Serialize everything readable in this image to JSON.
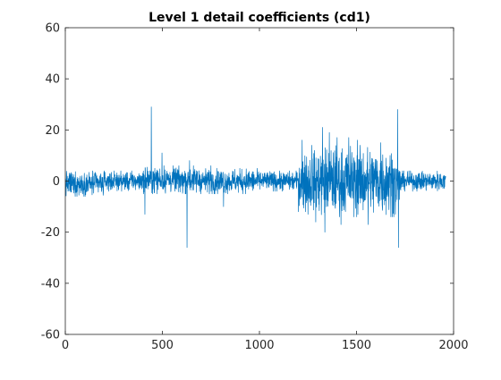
{
  "chart_data": {
    "type": "line",
    "title": "Level 1 detail coefficients (cd1)",
    "xlabel": "",
    "ylabel": "",
    "xlim": [
      0,
      2000
    ],
    "ylim": [
      -60,
      60
    ],
    "xticks": [
      0,
      500,
      1000,
      1500,
      2000
    ],
    "yticks": [
      -60,
      -40,
      -20,
      0,
      20,
      40,
      60
    ],
    "xtick_labels": [
      "0",
      "500",
      "1000",
      "1500",
      "2000"
    ],
    "ytick_labels": [
      "-60",
      "-40",
      "-20",
      "0",
      "20",
      "40",
      "60"
    ],
    "grid": false,
    "legend": "none",
    "n_points": 1960,
    "series": [
      {
        "color": "#0072BD",
        "envelope_segments": [
          {
            "x_start": 0,
            "x_end": 200,
            "ymin": -6,
            "ymax": 4
          },
          {
            "x_start": 200,
            "x_end": 400,
            "ymin": -4,
            "ymax": 4
          },
          {
            "x_start": 400,
            "x_end": 700,
            "ymin": -5,
            "ymax": 6
          },
          {
            "x_start": 700,
            "x_end": 1000,
            "ymin": -5,
            "ymax": 5
          },
          {
            "x_start": 1000,
            "x_end": 1200,
            "ymin": -4,
            "ymax": 4
          },
          {
            "x_start": 1200,
            "x_end": 1300,
            "ymin": -12,
            "ymax": 12
          },
          {
            "x_start": 1300,
            "x_end": 1500,
            "ymin": -14,
            "ymax": 14
          },
          {
            "x_start": 1500,
            "x_end": 1700,
            "ymin": -14,
            "ymax": 14
          },
          {
            "x_start": 1700,
            "x_end": 1730,
            "ymin": -10,
            "ymax": 8
          },
          {
            "x_start": 1730,
            "x_end": 1960,
            "ymin": -4,
            "ymax": 4
          }
        ],
        "spikes": [
          {
            "x": 60,
            "y": -6
          },
          {
            "x": 410,
            "y": -13
          },
          {
            "x": 443,
            "y": 29
          },
          {
            "x": 498,
            "y": 11
          },
          {
            "x": 627,
            "y": -26
          },
          {
            "x": 640,
            "y": 8
          },
          {
            "x": 750,
            "y": 6
          },
          {
            "x": 815,
            "y": -10
          },
          {
            "x": 1220,
            "y": 16
          },
          {
            "x": 1250,
            "y": -13
          },
          {
            "x": 1270,
            "y": 14
          },
          {
            "x": 1290,
            "y": -16
          },
          {
            "x": 1325,
            "y": 21
          },
          {
            "x": 1337,
            "y": -20
          },
          {
            "x": 1360,
            "y": 19
          },
          {
            "x": 1400,
            "y": 17
          },
          {
            "x": 1420,
            "y": -17
          },
          {
            "x": 1460,
            "y": 17
          },
          {
            "x": 1505,
            "y": 16
          },
          {
            "x": 1560,
            "y": -17
          },
          {
            "x": 1625,
            "y": 15
          },
          {
            "x": 1700,
            "y": -13
          },
          {
            "x": 1712,
            "y": 28
          },
          {
            "x": 1716,
            "y": -26
          }
        ]
      }
    ]
  }
}
